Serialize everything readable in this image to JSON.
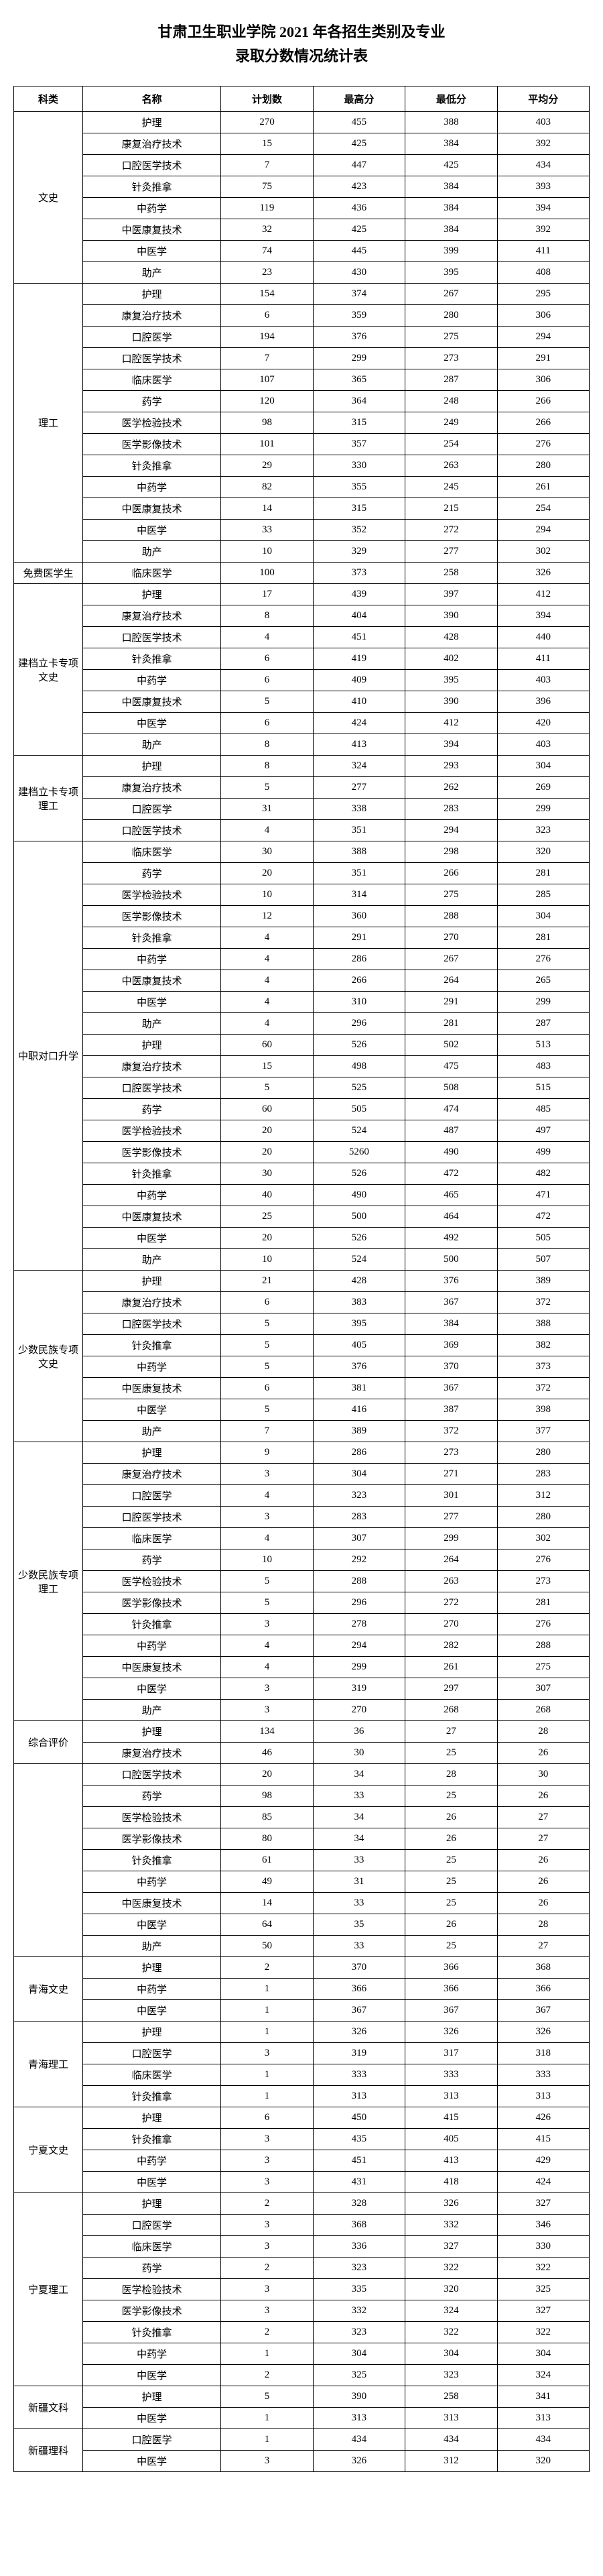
{
  "title_line1": "甘肃卫生职业学院 2021 年各招生类别及专业",
  "title_line2": "录取分数情况统计表",
  "headers": [
    "科类",
    "名称",
    "计划数",
    "最高分",
    "最低分",
    "平均分"
  ],
  "groups": [
    {
      "category": "文史",
      "rows": [
        [
          "护理",
          "270",
          "455",
          "388",
          "403"
        ],
        [
          "康复治疗技术",
          "15",
          "425",
          "384",
          "392"
        ],
        [
          "口腔医学技术",
          "7",
          "447",
          "425",
          "434"
        ],
        [
          "针灸推拿",
          "75",
          "423",
          "384",
          "393"
        ],
        [
          "中药学",
          "119",
          "436",
          "384",
          "394"
        ],
        [
          "中医康复技术",
          "32",
          "425",
          "384",
          "392"
        ],
        [
          "中医学",
          "74",
          "445",
          "399",
          "411"
        ],
        [
          "助产",
          "23",
          "430",
          "395",
          "408"
        ]
      ]
    },
    {
      "category": "理工",
      "rows": [
        [
          "护理",
          "154",
          "374",
          "267",
          "295"
        ],
        [
          "康复治疗技术",
          "6",
          "359",
          "280",
          "306"
        ],
        [
          "口腔医学",
          "194",
          "376",
          "275",
          "294"
        ],
        [
          "口腔医学技术",
          "7",
          "299",
          "273",
          "291"
        ],
        [
          "临床医学",
          "107",
          "365",
          "287",
          "306"
        ],
        [
          "药学",
          "120",
          "364",
          "248",
          "266"
        ],
        [
          "医学检验技术",
          "98",
          "315",
          "249",
          "266"
        ],
        [
          "医学影像技术",
          "101",
          "357",
          "254",
          "276"
        ],
        [
          "针灸推拿",
          "29",
          "330",
          "263",
          "280"
        ],
        [
          "中药学",
          "82",
          "355",
          "245",
          "261"
        ],
        [
          "中医康复技术",
          "14",
          "315",
          "215",
          "254"
        ],
        [
          "中医学",
          "33",
          "352",
          "272",
          "294"
        ],
        [
          "助产",
          "10",
          "329",
          "277",
          "302"
        ]
      ]
    },
    {
      "category": "免费医学生",
      "rows": [
        [
          "临床医学",
          "100",
          "373",
          "258",
          "326"
        ]
      ]
    },
    {
      "category": "建档立卡专项文史",
      "rows": [
        [
          "护理",
          "17",
          "439",
          "397",
          "412"
        ],
        [
          "康复治疗技术",
          "8",
          "404",
          "390",
          "394"
        ],
        [
          "口腔医学技术",
          "4",
          "451",
          "428",
          "440"
        ],
        [
          "针灸推拿",
          "6",
          "419",
          "402",
          "411"
        ],
        [
          "中药学",
          "6",
          "409",
          "395",
          "403"
        ],
        [
          "中医康复技术",
          "5",
          "410",
          "390",
          "396"
        ],
        [
          "中医学",
          "6",
          "424",
          "412",
          "420"
        ],
        [
          "助产",
          "8",
          "413",
          "394",
          "403"
        ]
      ]
    },
    {
      "category": "建档立卡专项理工",
      "rows": [
        [
          "护理",
          "8",
          "324",
          "293",
          "304"
        ],
        [
          "康复治疗技术",
          "5",
          "277",
          "262",
          "269"
        ],
        [
          "口腔医学",
          "31",
          "338",
          "283",
          "299"
        ],
        [
          "口腔医学技术",
          "4",
          "351",
          "294",
          "323"
        ]
      ]
    },
    {
      "category": "中职对口升学",
      "rows": [
        [
          "临床医学",
          "30",
          "388",
          "298",
          "320"
        ],
        [
          "药学",
          "20",
          "351",
          "266",
          "281"
        ],
        [
          "医学检验技术",
          "10",
          "314",
          "275",
          "285"
        ],
        [
          "医学影像技术",
          "12",
          "360",
          "288",
          "304"
        ],
        [
          "针灸推拿",
          "4",
          "291",
          "270",
          "281"
        ],
        [
          "中药学",
          "4",
          "286",
          "267",
          "276"
        ],
        [
          "中医康复技术",
          "4",
          "266",
          "264",
          "265"
        ],
        [
          "中医学",
          "4",
          "310",
          "291",
          "299"
        ],
        [
          "助产",
          "4",
          "296",
          "281",
          "287"
        ],
        [
          "护理",
          "60",
          "526",
          "502",
          "513"
        ],
        [
          "康复治疗技术",
          "15",
          "498",
          "475",
          "483"
        ],
        [
          "口腔医学技术",
          "5",
          "525",
          "508",
          "515"
        ],
        [
          "药学",
          "60",
          "505",
          "474",
          "485"
        ],
        [
          "医学检验技术",
          "20",
          "524",
          "487",
          "497"
        ],
        [
          "医学影像技术",
          "20",
          "5260",
          "490",
          "499"
        ],
        [
          "针灸推拿",
          "30",
          "526",
          "472",
          "482"
        ],
        [
          "中药学",
          "40",
          "490",
          "465",
          "471"
        ],
        [
          "中医康复技术",
          "25",
          "500",
          "464",
          "472"
        ],
        [
          "中医学",
          "20",
          "526",
          "492",
          "505"
        ],
        [
          "助产",
          "10",
          "524",
          "500",
          "507"
        ]
      ]
    },
    {
      "category": "少数民族专项文史",
      "rows": [
        [
          "护理",
          "21",
          "428",
          "376",
          "389"
        ],
        [
          "康复治疗技术",
          "6",
          "383",
          "367",
          "372"
        ],
        [
          "口腔医学技术",
          "5",
          "395",
          "384",
          "388"
        ],
        [
          "针灸推拿",
          "5",
          "405",
          "369",
          "382"
        ],
        [
          "中药学",
          "5",
          "376",
          "370",
          "373"
        ],
        [
          "中医康复技术",
          "6",
          "381",
          "367",
          "372"
        ],
        [
          "中医学",
          "5",
          "416",
          "387",
          "398"
        ],
        [
          "助产",
          "7",
          "389",
          "372",
          "377"
        ]
      ]
    },
    {
      "category": "少数民族专项理工",
      "rows": [
        [
          "护理",
          "9",
          "286",
          "273",
          "280"
        ],
        [
          "康复治疗技术",
          "3",
          "304",
          "271",
          "283"
        ],
        [
          "口腔医学",
          "4",
          "323",
          "301",
          "312"
        ],
        [
          "口腔医学技术",
          "3",
          "283",
          "277",
          "280"
        ],
        [
          "临床医学",
          "4",
          "307",
          "299",
          "302"
        ],
        [
          "药学",
          "10",
          "292",
          "264",
          "276"
        ],
        [
          "医学检验技术",
          "5",
          "288",
          "263",
          "273"
        ],
        [
          "医学影像技术",
          "5",
          "296",
          "272",
          "281"
        ],
        [
          "针灸推拿",
          "3",
          "278",
          "270",
          "276"
        ],
        [
          "中药学",
          "4",
          "294",
          "282",
          "288"
        ],
        [
          "中医康复技术",
          "4",
          "299",
          "261",
          "275"
        ],
        [
          "中医学",
          "3",
          "319",
          "297",
          "307"
        ],
        [
          "助产",
          "3",
          "270",
          "268",
          "268"
        ]
      ]
    },
    {
      "category": "综合评价",
      "rows": [
        [
          "护理",
          "134",
          "36",
          "27",
          "28"
        ],
        [
          "康复治疗技术",
          "46",
          "30",
          "25",
          "26"
        ]
      ]
    },
    {
      "category": "",
      "rows": [
        [
          "口腔医学技术",
          "20",
          "34",
          "28",
          "30"
        ],
        [
          "药学",
          "98",
          "33",
          "25",
          "26"
        ],
        [
          "医学检验技术",
          "85",
          "34",
          "26",
          "27"
        ],
        [
          "医学影像技术",
          "80",
          "34",
          "26",
          "27"
        ],
        [
          "针灸推拿",
          "61",
          "33",
          "25",
          "26"
        ],
        [
          "中药学",
          "49",
          "31",
          "25",
          "26"
        ],
        [
          "中医康复技术",
          "14",
          "33",
          "25",
          "26"
        ],
        [
          "中医学",
          "64",
          "35",
          "26",
          "28"
        ],
        [
          "助产",
          "50",
          "33",
          "25",
          "27"
        ]
      ]
    },
    {
      "category": "青海文史",
      "rows": [
        [
          "护理",
          "2",
          "370",
          "366",
          "368"
        ],
        [
          "中药学",
          "1",
          "366",
          "366",
          "366"
        ],
        [
          "中医学",
          "1",
          "367",
          "367",
          "367"
        ]
      ]
    },
    {
      "category": "青海理工",
      "rows": [
        [
          "护理",
          "1",
          "326",
          "326",
          "326"
        ],
        [
          "口腔医学",
          "3",
          "319",
          "317",
          "318"
        ],
        [
          "临床医学",
          "1",
          "333",
          "333",
          "333"
        ],
        [
          "针灸推拿",
          "1",
          "313",
          "313",
          "313"
        ]
      ]
    },
    {
      "category": "宁夏文史",
      "rows": [
        [
          "护理",
          "6",
          "450",
          "415",
          "426"
        ],
        [
          "针灸推拿",
          "3",
          "435",
          "405",
          "415"
        ],
        [
          "中药学",
          "3",
          "451",
          "413",
          "429"
        ],
        [
          "中医学",
          "3",
          "431",
          "418",
          "424"
        ]
      ]
    },
    {
      "category": "宁夏理工",
      "rows": [
        [
          "护理",
          "2",
          "328",
          "326",
          "327"
        ],
        [
          "口腔医学",
          "3",
          "368",
          "332",
          "346"
        ],
        [
          "临床医学",
          "3",
          "336",
          "327",
          "330"
        ],
        [
          "药学",
          "2",
          "323",
          "322",
          "322"
        ],
        [
          "医学检验技术",
          "3",
          "335",
          "320",
          "325"
        ],
        [
          "医学影像技术",
          "3",
          "332",
          "324",
          "327"
        ],
        [
          "针灸推拿",
          "2",
          "323",
          "322",
          "322"
        ],
        [
          "中药学",
          "1",
          "304",
          "304",
          "304"
        ],
        [
          "中医学",
          "2",
          "325",
          "323",
          "324"
        ]
      ]
    },
    {
      "category": "新疆文科",
      "rows": [
        [
          "护理",
          "5",
          "390",
          "258",
          "341"
        ],
        [
          "中医学",
          "1",
          "313",
          "313",
          "313"
        ]
      ]
    },
    {
      "category": "新疆理科",
      "rows": [
        [
          "口腔医学",
          "1",
          "434",
          "434",
          "434"
        ],
        [
          "中医学",
          "3",
          "326",
          "312",
          "320"
        ]
      ]
    }
  ]
}
